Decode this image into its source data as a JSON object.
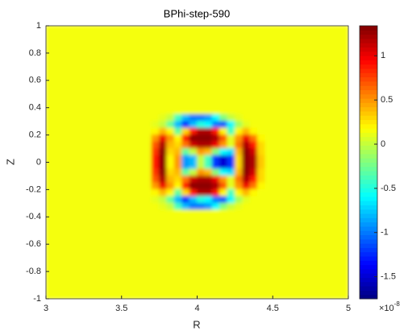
{
  "chart_data": {
    "type": "heatmap",
    "title": "BPhi-step-590",
    "x_label": "R",
    "y_label": "Z",
    "xedges": [
      3,
      3.7,
      3.75,
      3.8,
      3.85,
      3.9,
      3.95,
      4,
      4.05,
      4.1,
      4.15,
      4.2,
      4.25,
      4.3,
      4.35,
      4.4,
      4.45,
      5
    ],
    "yedges": [
      1,
      0.35,
      0.3,
      0.25,
      0.2,
      0.15,
      0.1,
      0.05,
      0,
      -0.05,
      -0.1,
      -0.15,
      -0.2,
      -0.25,
      -0.3,
      -0.35,
      -1
    ],
    "z": [
      [
        0.15,
        0.15,
        0.15,
        0.15,
        0.15,
        0.15,
        0.15,
        0.15,
        0.15,
        0.15,
        0.15,
        0.15,
        0.15,
        0.15,
        0.15,
        0.15,
        0.15
      ],
      [
        0.15,
        0.15,
        0.1,
        0,
        -0.4,
        -0.8,
        -1,
        -1,
        -0.9,
        -0.6,
        -0.2,
        0,
        0.1,
        0.15,
        0.15,
        0.15,
        0.15
      ],
      [
        0.15,
        0.1,
        0,
        -0.3,
        -0.8,
        -1.2,
        -0.8,
        -0.5,
        -0.6,
        -1,
        -1.1,
        -0.6,
        -0.1,
        0.1,
        0.15,
        0.15,
        0.15
      ],
      [
        0.15,
        0.2,
        0.4,
        0.2,
        -0.3,
        0.3,
        0.9,
        1.2,
        1.2,
        0.9,
        0.2,
        -0.4,
        0.2,
        0.4,
        0.2,
        0.15,
        0.15
      ],
      [
        0.15,
        0.5,
        1,
        0.5,
        0.2,
        0.9,
        1.3,
        1.3,
        1.3,
        1.2,
        0.7,
        0.1,
        0.5,
        1,
        0.6,
        0.2,
        0.15
      ],
      [
        0.15,
        0.7,
        1.2,
        0.4,
        0.3,
        0.6,
        1.1,
        1.2,
        1.2,
        1,
        0.5,
        0.1,
        0.6,
        1.2,
        0.9,
        0.3,
        0.15
      ],
      [
        0.15,
        0.8,
        1.3,
        0.3,
        0.4,
        -0.3,
        0,
        0.5,
        0.4,
        -0.2,
        -0.6,
        -0.7,
        0.4,
        1.3,
        1.1,
        0.3,
        0.15
      ],
      [
        0.15,
        0.9,
        1.3,
        0.2,
        0.5,
        -0.9,
        -0.8,
        0,
        -0.4,
        -1.2,
        -1.5,
        -1.2,
        0.3,
        1.3,
        1.2,
        0.35,
        0.15
      ],
      [
        0.15,
        0.9,
        1.3,
        0.2,
        0.5,
        -0.9,
        -0.8,
        0,
        -0.4,
        -1.2,
        -1.5,
        -1.2,
        0.3,
        1.3,
        1.2,
        0.35,
        0.15
      ],
      [
        0.15,
        0.8,
        1.3,
        0.3,
        0.4,
        -0.3,
        0,
        0.5,
        0.4,
        -0.2,
        -0.6,
        -0.7,
        0.4,
        1.3,
        1.1,
        0.3,
        0.15
      ],
      [
        0.15,
        0.7,
        1.2,
        0.4,
        0.3,
        0.6,
        1.1,
        1.2,
        1.2,
        1,
        0.5,
        0.1,
        0.6,
        1.2,
        0.9,
        0.3,
        0.15
      ],
      [
        0.15,
        0.5,
        1,
        0.5,
        0.2,
        0.9,
        1.3,
        1.3,
        1.3,
        1.2,
        0.7,
        0.1,
        0.5,
        1,
        0.6,
        0.2,
        0.15
      ],
      [
        0.15,
        0.2,
        0.4,
        0.2,
        -0.3,
        0.3,
        0.9,
        1.2,
        1.2,
        0.9,
        0.2,
        -0.4,
        0.2,
        0.4,
        0.2,
        0.15,
        0.15
      ],
      [
        0.15,
        0.1,
        0,
        -0.3,
        -0.8,
        -1.2,
        -0.8,
        -0.5,
        -0.6,
        -1,
        -1.1,
        -0.6,
        -0.1,
        0.1,
        0.15,
        0.15,
        0.15
      ],
      [
        0.15,
        0.15,
        0.1,
        0,
        -0.4,
        -0.8,
        -1,
        -1,
        -0.9,
        -0.6,
        -0.2,
        0,
        0.1,
        0.15,
        0.15,
        0.15,
        0.15
      ],
      [
        0.15,
        0.15,
        0.15,
        0.15,
        0.15,
        0.15,
        0.15,
        0.15,
        0.15,
        0.15,
        0.15,
        0.15,
        0.15,
        0.15,
        0.15,
        0.15,
        0.15
      ]
    ],
    "xlim": [
      3,
      5
    ],
    "xticks": [
      3,
      3.5,
      4,
      4.5,
      5
    ],
    "ylim": [
      -1,
      1
    ],
    "yticks": [
      -1,
      -0.8,
      -0.6,
      -0.4,
      -0.2,
      0,
      0.2,
      0.4,
      0.6,
      0.8,
      1
    ],
    "colormap": "jet",
    "clim": [
      -1.75,
      1.34
    ],
    "colorbar_ticks": [
      -1.5,
      -1,
      -0.5,
      0,
      0.5,
      1
    ],
    "colorbar_exponent_base": "×10",
    "colorbar_exponent": "-8"
  }
}
